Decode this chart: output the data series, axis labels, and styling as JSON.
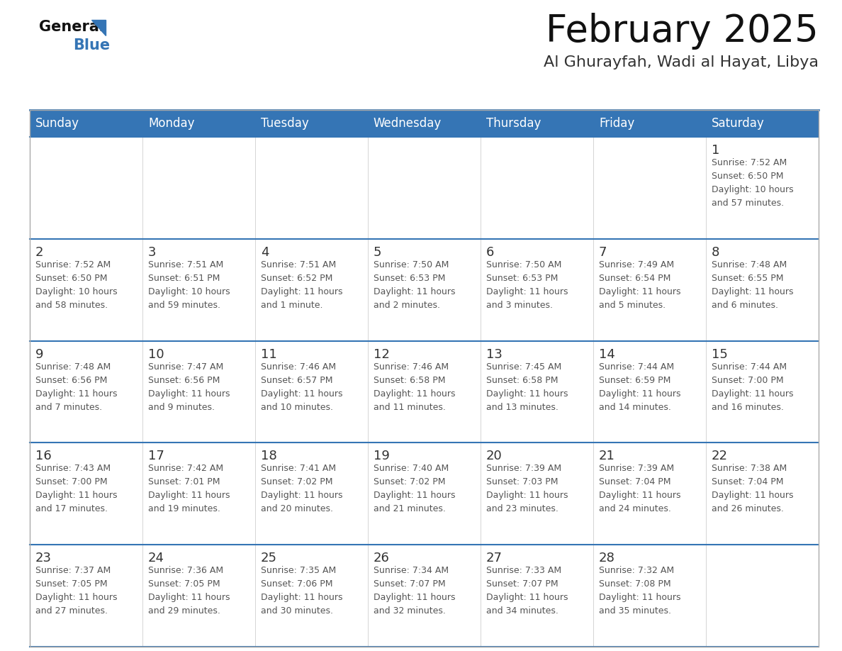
{
  "title": "February 2025",
  "subtitle": "Al Ghurayfah, Wadi al Hayat, Libya",
  "days_of_week": [
    "Sunday",
    "Monday",
    "Tuesday",
    "Wednesday",
    "Thursday",
    "Friday",
    "Saturday"
  ],
  "header_bg": "#3575B5",
  "header_text": "#FFFFFF",
  "cell_bg": "#FFFFFF",
  "day_number_color": "#333333",
  "info_text_color": "#555555",
  "title_color": "#111111",
  "subtitle_color": "#333333",
  "week_separator_color": "#3575B5",
  "outer_border_color": "#AAAAAA",
  "calendar": [
    [
      {
        "day": null,
        "sunrise": null,
        "sunset": null,
        "daylight": null
      },
      {
        "day": null,
        "sunrise": null,
        "sunset": null,
        "daylight": null
      },
      {
        "day": null,
        "sunrise": null,
        "sunset": null,
        "daylight": null
      },
      {
        "day": null,
        "sunrise": null,
        "sunset": null,
        "daylight": null
      },
      {
        "day": null,
        "sunrise": null,
        "sunset": null,
        "daylight": null
      },
      {
        "day": null,
        "sunrise": null,
        "sunset": null,
        "daylight": null
      },
      {
        "day": 1,
        "sunrise": "7:52 AM",
        "sunset": "6:50 PM",
        "daylight": "10 hours\nand 57 minutes."
      }
    ],
    [
      {
        "day": 2,
        "sunrise": "7:52 AM",
        "sunset": "6:50 PM",
        "daylight": "10 hours\nand 58 minutes."
      },
      {
        "day": 3,
        "sunrise": "7:51 AM",
        "sunset": "6:51 PM",
        "daylight": "10 hours\nand 59 minutes."
      },
      {
        "day": 4,
        "sunrise": "7:51 AM",
        "sunset": "6:52 PM",
        "daylight": "11 hours\nand 1 minute."
      },
      {
        "day": 5,
        "sunrise": "7:50 AM",
        "sunset": "6:53 PM",
        "daylight": "11 hours\nand 2 minutes."
      },
      {
        "day": 6,
        "sunrise": "7:50 AM",
        "sunset": "6:53 PM",
        "daylight": "11 hours\nand 3 minutes."
      },
      {
        "day": 7,
        "sunrise": "7:49 AM",
        "sunset": "6:54 PM",
        "daylight": "11 hours\nand 5 minutes."
      },
      {
        "day": 8,
        "sunrise": "7:48 AM",
        "sunset": "6:55 PM",
        "daylight": "11 hours\nand 6 minutes."
      }
    ],
    [
      {
        "day": 9,
        "sunrise": "7:48 AM",
        "sunset": "6:56 PM",
        "daylight": "11 hours\nand 7 minutes."
      },
      {
        "day": 10,
        "sunrise": "7:47 AM",
        "sunset": "6:56 PM",
        "daylight": "11 hours\nand 9 minutes."
      },
      {
        "day": 11,
        "sunrise": "7:46 AM",
        "sunset": "6:57 PM",
        "daylight": "11 hours\nand 10 minutes."
      },
      {
        "day": 12,
        "sunrise": "7:46 AM",
        "sunset": "6:58 PM",
        "daylight": "11 hours\nand 11 minutes."
      },
      {
        "day": 13,
        "sunrise": "7:45 AM",
        "sunset": "6:58 PM",
        "daylight": "11 hours\nand 13 minutes."
      },
      {
        "day": 14,
        "sunrise": "7:44 AM",
        "sunset": "6:59 PM",
        "daylight": "11 hours\nand 14 minutes."
      },
      {
        "day": 15,
        "sunrise": "7:44 AM",
        "sunset": "7:00 PM",
        "daylight": "11 hours\nand 16 minutes."
      }
    ],
    [
      {
        "day": 16,
        "sunrise": "7:43 AM",
        "sunset": "7:00 PM",
        "daylight": "11 hours\nand 17 minutes."
      },
      {
        "day": 17,
        "sunrise": "7:42 AM",
        "sunset": "7:01 PM",
        "daylight": "11 hours\nand 19 minutes."
      },
      {
        "day": 18,
        "sunrise": "7:41 AM",
        "sunset": "7:02 PM",
        "daylight": "11 hours\nand 20 minutes."
      },
      {
        "day": 19,
        "sunrise": "7:40 AM",
        "sunset": "7:02 PM",
        "daylight": "11 hours\nand 21 minutes."
      },
      {
        "day": 20,
        "sunrise": "7:39 AM",
        "sunset": "7:03 PM",
        "daylight": "11 hours\nand 23 minutes."
      },
      {
        "day": 21,
        "sunrise": "7:39 AM",
        "sunset": "7:04 PM",
        "daylight": "11 hours\nand 24 minutes."
      },
      {
        "day": 22,
        "sunrise": "7:38 AM",
        "sunset": "7:04 PM",
        "daylight": "11 hours\nand 26 minutes."
      }
    ],
    [
      {
        "day": 23,
        "sunrise": "7:37 AM",
        "sunset": "7:05 PM",
        "daylight": "11 hours\nand 27 minutes."
      },
      {
        "day": 24,
        "sunrise": "7:36 AM",
        "sunset": "7:05 PM",
        "daylight": "11 hours\nand 29 minutes."
      },
      {
        "day": 25,
        "sunrise": "7:35 AM",
        "sunset": "7:06 PM",
        "daylight": "11 hours\nand 30 minutes."
      },
      {
        "day": 26,
        "sunrise": "7:34 AM",
        "sunset": "7:07 PM",
        "daylight": "11 hours\nand 32 minutes."
      },
      {
        "day": 27,
        "sunrise": "7:33 AM",
        "sunset": "7:07 PM",
        "daylight": "11 hours\nand 34 minutes."
      },
      {
        "day": 28,
        "sunrise": "7:32 AM",
        "sunset": "7:08 PM",
        "daylight": "11 hours\nand 35 minutes."
      },
      {
        "day": null,
        "sunrise": null,
        "sunset": null,
        "daylight": null
      }
    ]
  ]
}
